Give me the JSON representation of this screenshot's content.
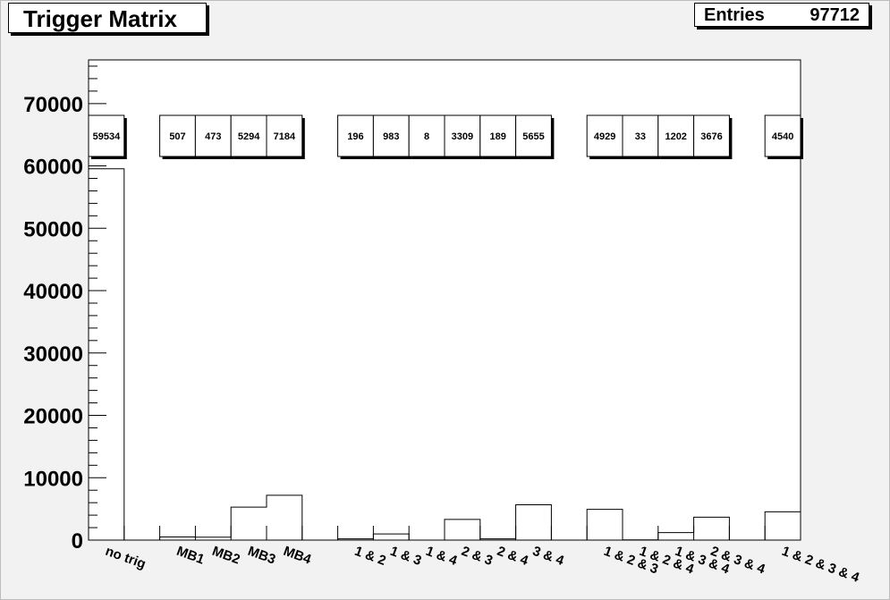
{
  "title": "Trigger Matrix",
  "stats": {
    "label": "Entries",
    "value": "97712"
  },
  "chart_data": {
    "type": "bar",
    "title": "Trigger Matrix",
    "xlabel": "",
    "ylabel": "",
    "ylim": [
      0,
      77000
    ],
    "yticks": [
      0,
      10000,
      20000,
      30000,
      40000,
      50000,
      60000,
      70000
    ],
    "ytick_labels": [
      "0",
      "10000",
      "20000",
      "30000",
      "40000",
      "50000",
      "60000",
      "70000"
    ],
    "grid": false,
    "bins": [
      {
        "label": "no trig",
        "value": 59534,
        "box": "59534"
      },
      {
        "label": "",
        "value": 0,
        "box": ""
      },
      {
        "label": "MB1",
        "value": 507,
        "box": "507"
      },
      {
        "label": "MB2",
        "value": 473,
        "box": "473"
      },
      {
        "label": "MB3",
        "value": 5294,
        "box": "5294"
      },
      {
        "label": "MB4",
        "value": 7184,
        "box": "7184"
      },
      {
        "label": "",
        "value": 0,
        "box": ""
      },
      {
        "label": "1 & 2",
        "value": 196,
        "box": "196"
      },
      {
        "label": "1 & 3",
        "value": 983,
        "box": "983"
      },
      {
        "label": "1 & 4",
        "value": 8,
        "box": "8"
      },
      {
        "label": "2 & 3",
        "value": 3309,
        "box": "3309"
      },
      {
        "label": "2 & 4",
        "value": 189,
        "box": "189"
      },
      {
        "label": "3 & 4",
        "value": 5655,
        "box": "5655"
      },
      {
        "label": "",
        "value": 0,
        "box": ""
      },
      {
        "label": "1 & 2 & 3",
        "value": 4929,
        "box": "4929"
      },
      {
        "label": "1 & 2 & 4",
        "value": 33,
        "box": "33"
      },
      {
        "label": "1 & 3 & 4",
        "value": 1202,
        "box": "1202"
      },
      {
        "label": "2 & 3 & 4",
        "value": 3676,
        "box": "3676"
      },
      {
        "label": "",
        "value": 0,
        "box": ""
      },
      {
        "label": "1 & 2 & 3 & 4",
        "value": 4540,
        "box": "4540"
      }
    ]
  }
}
